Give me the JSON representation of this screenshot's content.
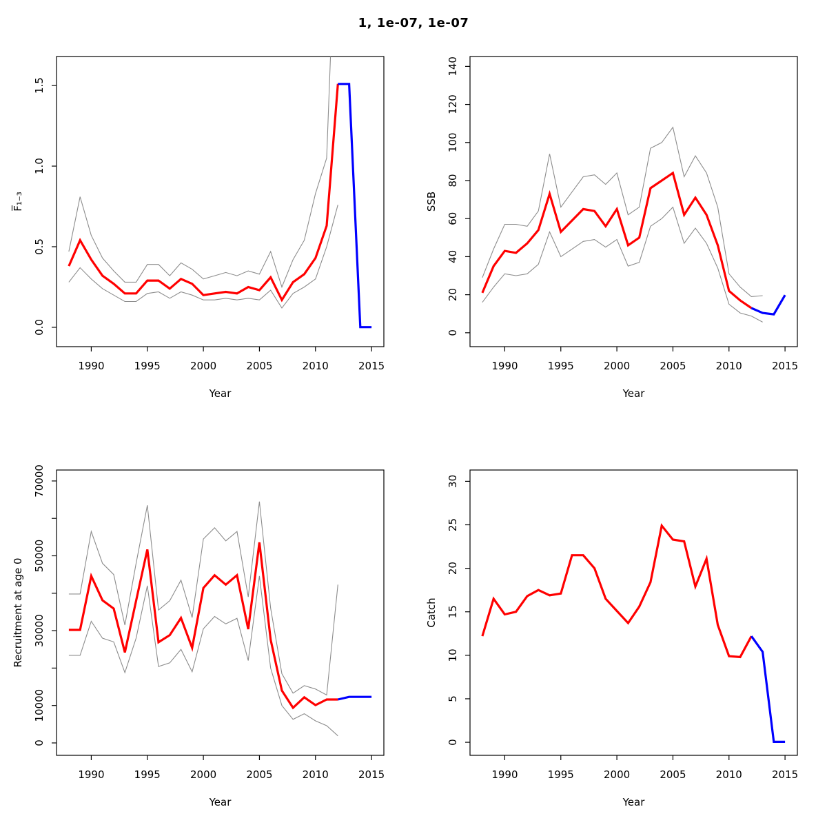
{
  "title": "1, 1e-07, 1e-07",
  "colors": {
    "median": "#FF0000",
    "projection": "#0000FF",
    "interval": "#8C8C8C",
    "axis": "#000000",
    "background": "#FFFFFF",
    "title_text": "#000000"
  },
  "chart_data": [
    {
      "id": "fbar",
      "type": "line",
      "xlabel": "Year",
      "ylabel": "F̅₁₋₃",
      "xlim": [
        1986.9,
        2016.1
      ],
      "ylim": [
        -0.12,
        1.68
      ],
      "xticks": [
        1990,
        1995,
        2000,
        2005,
        2010,
        2015
      ],
      "xtick_labels": [
        "1990",
        "1995",
        "2000",
        "2005",
        "2010",
        "2015"
      ],
      "yticks": [
        0,
        0.5,
        1.0,
        1.5
      ],
      "ytick_labels": [
        "0.0",
        "0.5",
        "1.0",
        "1.5"
      ],
      "grid": false,
      "series": [
        {
          "name": "lower-interval",
          "role": "interval",
          "x": [
            1988,
            1989,
            1990,
            1991,
            1992,
            1993,
            1994,
            1995,
            1996,
            1997,
            1998,
            1999,
            2000,
            2001,
            2002,
            2003,
            2004,
            2005,
            2006,
            2007,
            2008,
            2009,
            2010,
            2011,
            2012
          ],
          "y": [
            0.28,
            0.37,
            0.3,
            0.24,
            0.2,
            0.16,
            0.16,
            0.21,
            0.22,
            0.18,
            0.22,
            0.2,
            0.17,
            0.17,
            0.18,
            0.17,
            0.18,
            0.17,
            0.23,
            0.12,
            0.21,
            0.25,
            0.3,
            0.5,
            0.76
          ]
        },
        {
          "name": "upper-interval",
          "role": "interval",
          "x": [
            1988,
            1989,
            1990,
            1991,
            1992,
            1993,
            1994,
            1995,
            1996,
            1997,
            1998,
            1999,
            2000,
            2001,
            2002,
            2003,
            2004,
            2005,
            2006,
            2007,
            2008,
            2009,
            2010,
            2011,
            2012
          ],
          "y": [
            0.47,
            0.81,
            0.57,
            0.43,
            0.35,
            0.28,
            0.28,
            0.39,
            0.39,
            0.32,
            0.4,
            0.36,
            0.3,
            0.32,
            0.34,
            0.32,
            0.35,
            0.33,
            0.47,
            0.25,
            0.42,
            0.54,
            0.83,
            1.05,
            2.9
          ]
        },
        {
          "name": "median",
          "role": "median",
          "x": [
            1988,
            1989,
            1990,
            1991,
            1992,
            1993,
            1994,
            1995,
            1996,
            1997,
            1998,
            1999,
            2000,
            2001,
            2002,
            2003,
            2004,
            2005,
            2006,
            2007,
            2008,
            2009,
            2010,
            2011,
            2012
          ],
          "y": [
            0.38,
            0.54,
            0.42,
            0.32,
            0.27,
            0.21,
            0.21,
            0.29,
            0.29,
            0.24,
            0.3,
            0.27,
            0.2,
            0.21,
            0.22,
            0.21,
            0.25,
            0.23,
            0.31,
            0.17,
            0.28,
            0.33,
            0.43,
            0.63,
            1.51
          ]
        },
        {
          "name": "projection",
          "role": "projection",
          "x": [
            2012,
            2013,
            2014,
            2015
          ],
          "y": [
            1.51,
            1.51,
            0.001,
            0.001
          ]
        }
      ]
    },
    {
      "id": "ssb",
      "type": "line",
      "xlabel": "Year",
      "ylabel": "SSB",
      "xlim": [
        1986.9,
        2016.1
      ],
      "ylim": [
        -7.3,
        145.2
      ],
      "xticks": [
        1990,
        1995,
        2000,
        2005,
        2010,
        2015
      ],
      "xtick_labels": [
        "1990",
        "1995",
        "2000",
        "2005",
        "2010",
        "2015"
      ],
      "yticks": [
        0,
        20,
        40,
        60,
        80,
        100,
        120,
        140
      ],
      "ytick_labels": [
        "0",
        "20",
        "40",
        "60",
        "80",
        "100",
        "120",
        "140"
      ],
      "grid": false,
      "series": [
        {
          "name": "lower-interval",
          "role": "interval",
          "x": [
            1988,
            1989,
            1990,
            1991,
            1992,
            1993,
            1994,
            1995,
            1996,
            1997,
            1998,
            1999,
            2000,
            2001,
            2002,
            2003,
            2004,
            2005,
            2006,
            2007,
            2008,
            2009,
            2010,
            2011,
            2012,
            2013
          ],
          "y": [
            16,
            24,
            31,
            30,
            31,
            36,
            53,
            40,
            44,
            48,
            49,
            45,
            49,
            35,
            37,
            56,
            60,
            66,
            47,
            55,
            47,
            34,
            15,
            10.4,
            8.8,
            5.6
          ]
        },
        {
          "name": "upper-interval",
          "role": "interval",
          "x": [
            1988,
            1989,
            1990,
            1991,
            1992,
            1993,
            1994,
            1995,
            1996,
            1997,
            1998,
            1999,
            2000,
            2001,
            2002,
            2003,
            2004,
            2005,
            2006,
            2007,
            2008,
            2009,
            2010,
            2011,
            2012,
            2013
          ],
          "y": [
            29,
            44,
            57,
            57,
            56,
            64,
            94,
            66,
            74,
            82,
            83,
            78,
            84,
            62,
            66,
            97,
            100,
            108,
            82,
            93,
            84,
            66,
            31,
            24,
            19,
            19.5
          ]
        },
        {
          "name": "median",
          "role": "median",
          "x": [
            1988,
            1989,
            1990,
            1991,
            1992,
            1993,
            1994,
            1995,
            1996,
            1997,
            1998,
            1999,
            2000,
            2001,
            2002,
            2003,
            2004,
            2005,
            2006,
            2007,
            2008,
            2009,
            2010,
            2011,
            2012
          ],
          "y": [
            21,
            35,
            43,
            42,
            47,
            54,
            73,
            53,
            59,
            65,
            64,
            56,
            65,
            46,
            50,
            76,
            80,
            84,
            62,
            71,
            62,
            46,
            22,
            17,
            13
          ]
        },
        {
          "name": "projection",
          "role": "projection",
          "x": [
            2012,
            2013,
            2014,
            2015
          ],
          "y": [
            13,
            10.4,
            9.7,
            19.8
          ]
        }
      ]
    },
    {
      "id": "recruitment",
      "type": "line",
      "xlabel": "Year",
      "ylabel": "Recruitment at age 0",
      "xlim": [
        1986.9,
        2016.1
      ],
      "ylim": [
        -3315,
        72930
      ],
      "xticks": [
        1990,
        1995,
        2000,
        2005,
        2010,
        2015
      ],
      "xtick_labels": [
        "1990",
        "1995",
        "2000",
        "2005",
        "2010",
        "2015"
      ],
      "yticks": [
        0,
        10000,
        20000,
        30000,
        40000,
        50000,
        60000,
        70000
      ],
      "ytick_labels": [
        "0",
        "10000",
        "",
        "30000",
        "",
        "50000",
        "",
        "70000"
      ],
      "grid": false,
      "series": [
        {
          "name": "lower-interval",
          "role": "interval",
          "x": [
            1988,
            1989,
            1990,
            1991,
            1992,
            1993,
            1994,
            1995,
            1996,
            1997,
            1998,
            1999,
            2000,
            2001,
            2002,
            2003,
            2004,
            2005,
            2006,
            2007,
            2008,
            2009,
            2010,
            2011,
            2012
          ],
          "y": [
            23400,
            23400,
            32500,
            28000,
            27000,
            18800,
            28000,
            42000,
            20400,
            21400,
            25000,
            19000,
            30500,
            33800,
            31800,
            33300,
            22000,
            44600,
            20000,
            10000,
            6300,
            7800,
            5900,
            4600,
            1900
          ]
        },
        {
          "name": "upper-interval",
          "role": "interval",
          "x": [
            1988,
            1989,
            1990,
            1991,
            1992,
            1993,
            1994,
            1995,
            1996,
            1997,
            1998,
            1999,
            2000,
            2001,
            2002,
            2003,
            2004,
            2005,
            2006,
            2007,
            2008,
            2009,
            2010,
            2011,
            2012
          ],
          "y": [
            39800,
            39800,
            56500,
            48000,
            45000,
            31500,
            48000,
            63500,
            35500,
            38000,
            43500,
            33500,
            54500,
            57500,
            54000,
            56500,
            39000,
            64500,
            36000,
            18500,
            13300,
            15300,
            14400,
            12800,
            42300
          ]
        },
        {
          "name": "median",
          "role": "median",
          "x": [
            1988,
            1989,
            1990,
            1991,
            1992,
            1993,
            1994,
            1995,
            1996,
            1997,
            1998,
            1999,
            2000,
            2001,
            2002,
            2003,
            2004,
            2005,
            2006,
            2007,
            2008,
            2009,
            2010,
            2011,
            2012
          ],
          "y": [
            30200,
            30200,
            44600,
            38100,
            35900,
            24200,
            38000,
            51700,
            26900,
            28800,
            33400,
            25400,
            41400,
            44800,
            42300,
            44800,
            30400,
            53600,
            27600,
            14000,
            9400,
            12200,
            10100,
            11600,
            11600
          ]
        },
        {
          "name": "projection",
          "role": "projection",
          "x": [
            2012,
            2013,
            2014,
            2015
          ],
          "y": [
            11600,
            12300,
            12300,
            12300
          ]
        }
      ]
    },
    {
      "id": "catch",
      "type": "line",
      "xlabel": "Year",
      "ylabel": "Catch",
      "xlim": [
        1986.9,
        2016.1
      ],
      "ylim": [
        -1.5,
        31.3
      ],
      "xticks": [
        1990,
        1995,
        2000,
        2005,
        2010,
        2015
      ],
      "xtick_labels": [
        "1990",
        "1995",
        "2000",
        "2005",
        "2010",
        "2015"
      ],
      "yticks": [
        0,
        5,
        10,
        15,
        20,
        25,
        30
      ],
      "ytick_labels": [
        "0",
        "5",
        "10",
        "15",
        "20",
        "25",
        "30"
      ],
      "grid": false,
      "series": [
        {
          "name": "median",
          "role": "median",
          "x": [
            1988,
            1989,
            1990,
            1991,
            1992,
            1993,
            1994,
            1995,
            1996,
            1997,
            1998,
            1999,
            2000,
            2001,
            2002,
            2003,
            2004,
            2005,
            2006,
            2007,
            2008,
            2009,
            2010,
            2011,
            2012
          ],
          "y": [
            12.2,
            16.5,
            14.7,
            15.0,
            16.8,
            17.5,
            16.9,
            17.1,
            21.5,
            21.5,
            20.0,
            16.5,
            15.1,
            13.7,
            15.6,
            18.4,
            24.9,
            23.3,
            23.1,
            17.9,
            21.1,
            13.5,
            9.9,
            9.8,
            12.2
          ]
        },
        {
          "name": "projection",
          "role": "projection",
          "x": [
            2012,
            2013,
            2014,
            2015
          ],
          "y": [
            12.2,
            10.4,
            0.05,
            0.05
          ]
        }
      ]
    }
  ]
}
